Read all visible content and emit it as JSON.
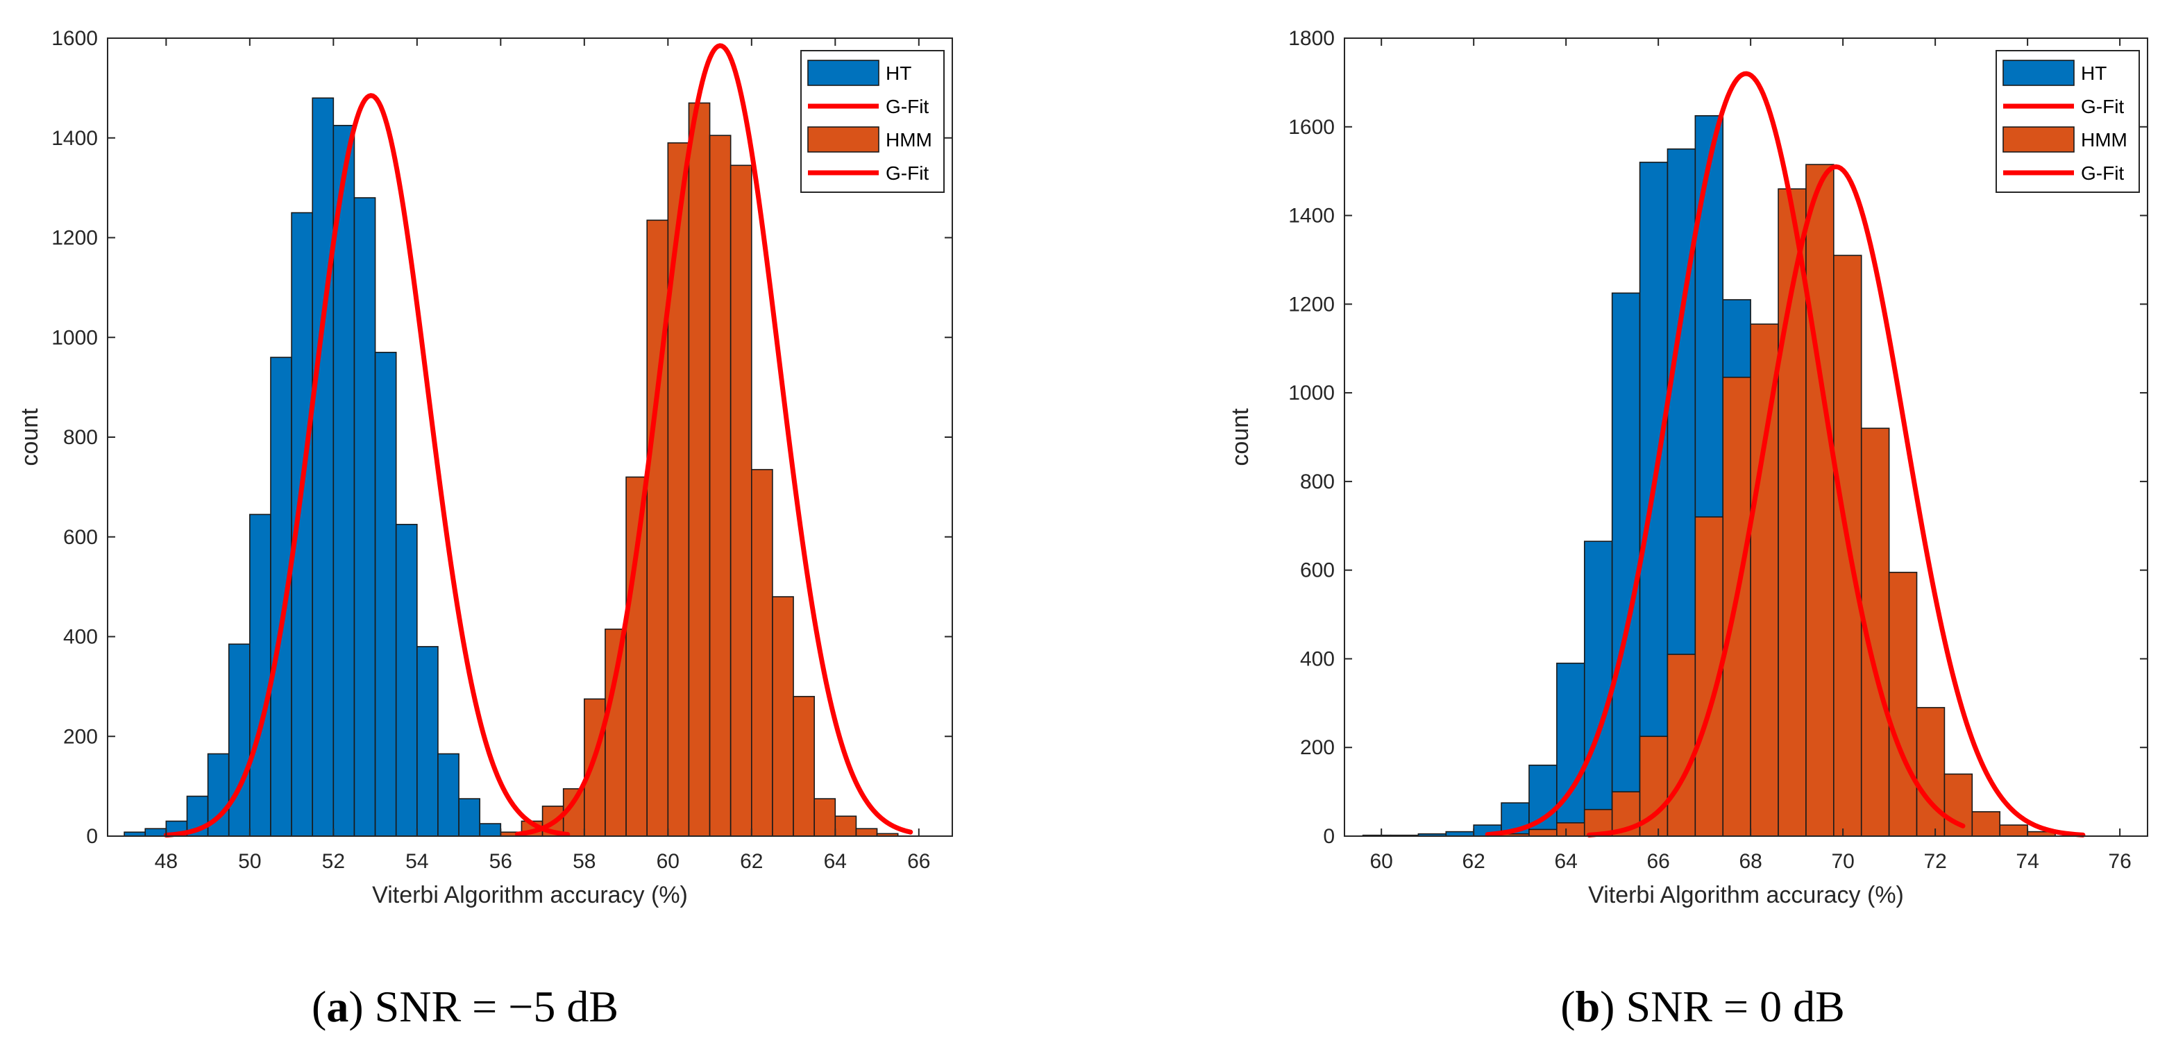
{
  "captions": [
    {
      "open": "(",
      "letter": "a",
      "close": ")",
      "text": " SNR = −5 dB"
    },
    {
      "open": "(",
      "letter": "b",
      "close": ")",
      "text": " SNR = 0 dB"
    }
  ],
  "colors": {
    "ht": "#0072BD",
    "hmm": "#D95319",
    "fit": "#FF0000",
    "edge": "#1a1a1a",
    "axis": "#262626"
  },
  "chart_data": [
    {
      "type": "bar",
      "title": "",
      "xlabel": "Viterbi Algorithm accuracy (%)",
      "ylabel": "count",
      "xlim": [
        46.6,
        66.8
      ],
      "ylim": [
        0,
        1600
      ],
      "xticks": [
        48,
        50,
        52,
        54,
        56,
        58,
        60,
        62,
        64,
        66
      ],
      "yticks": [
        0,
        200,
        400,
        600,
        800,
        1000,
        1200,
        1400,
        1600
      ],
      "legend_position": "top-right",
      "legend": [
        "HT",
        "G-Fit",
        "HMM",
        "G-Fit"
      ],
      "series": [
        {
          "name": "HT",
          "kind": "histogram",
          "bin_start": 47.0,
          "bin_width": 0.5,
          "values": [
            8,
            15,
            30,
            80,
            165,
            385,
            645,
            960,
            1250,
            1480,
            1425,
            1280,
            970,
            625,
            380,
            165,
            75,
            25
          ]
        },
        {
          "name": "G-Fit",
          "kind": "gaussian",
          "of": "HT",
          "mu": 52.9,
          "sigma": 1.35,
          "peak": 1485,
          "x_range": [
            48.0,
            57.6
          ]
        },
        {
          "name": "HMM",
          "kind": "histogram",
          "bin_start": 56.0,
          "bin_width": 0.5,
          "values": [
            8,
            30,
            60,
            95,
            275,
            415,
            720,
            1235,
            1390,
            1470,
            1405,
            1345,
            735,
            480,
            280,
            75,
            40,
            15,
            5
          ]
        },
        {
          "name": "G-Fit",
          "kind": "gaussian",
          "of": "HMM",
          "mu": 61.25,
          "sigma": 1.4,
          "peak": 1585,
          "x_range": [
            56.4,
            65.8
          ]
        }
      ]
    },
    {
      "type": "bar",
      "title": "",
      "xlabel": "Viterbi Algorithm accuracy (%)",
      "ylabel": "count",
      "xlim": [
        59.2,
        76.6
      ],
      "ylim": [
        0,
        1800
      ],
      "xticks": [
        60,
        62,
        64,
        66,
        68,
        70,
        72,
        74,
        76
      ],
      "yticks": [
        0,
        200,
        400,
        600,
        800,
        1000,
        1200,
        1400,
        1600,
        1800
      ],
      "legend_position": "top-right",
      "legend": [
        "HT",
        "G-Fit",
        "HMM",
        "G-Fit"
      ],
      "series": [
        {
          "name": "HT",
          "kind": "histogram",
          "bin_start": 59.6,
          "bin_width": 0.6,
          "values": [
            2,
            2,
            5,
            10,
            25,
            75,
            160,
            390,
            665,
            1225,
            1520,
            1550,
            1625,
            1210,
            740,
            370,
            140,
            60,
            20,
            5
          ]
        },
        {
          "name": "G-Fit",
          "kind": "gaussian",
          "of": "HT",
          "mu": 67.9,
          "sigma": 1.6,
          "peak": 1720,
          "x_range": [
            62.3,
            72.6
          ]
        },
        {
          "name": "HMM",
          "kind": "histogram",
          "bin_start": 62.6,
          "bin_width": 0.6,
          "values": [
            5,
            15,
            30,
            60,
            100,
            225,
            410,
            720,
            1035,
            1155,
            1460,
            1515,
            1310,
            920,
            595,
            290,
            140,
            55,
            25,
            10
          ]
        },
        {
          "name": "G-Fit",
          "kind": "gaussian",
          "of": "HMM",
          "mu": 69.85,
          "sigma": 1.5,
          "peak": 1510,
          "x_range": [
            64.5,
            75.2
          ]
        }
      ]
    }
  ]
}
